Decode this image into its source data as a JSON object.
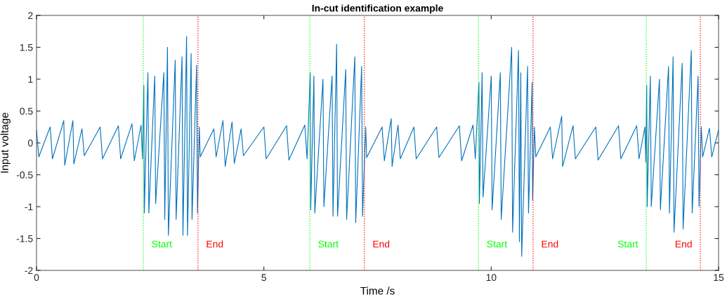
{
  "chart_data": {
    "type": "line",
    "title": "In-cut identification example",
    "xlabel": "Time /s",
    "ylabel": "Input voltage",
    "xlim": [
      0,
      15
    ],
    "xticks": [
      0,
      5,
      10,
      15
    ],
    "ylim": [
      -2,
      2
    ],
    "yticks": [
      -2,
      -1.5,
      -1,
      -0.5,
      0,
      0.5,
      1,
      1.5,
      2
    ],
    "grid": false,
    "legend": false,
    "marker": "none",
    "line_style": "solid",
    "series": [
      {
        "color": "#0072bd",
        "x": [
          0.0,
          0.05,
          0.3,
          0.35,
          0.6,
          0.62,
          0.8,
          0.82,
          1.0,
          1.05,
          1.4,
          1.45,
          1.8,
          1.85,
          2.1,
          2.15,
          2.3,
          2.33,
          2.36,
          2.37,
          2.45,
          2.47,
          2.6,
          2.62,
          2.8,
          2.82,
          2.88,
          2.9,
          3.05,
          3.07,
          3.2,
          3.22,
          3.3,
          3.32,
          3.4,
          3.42,
          3.52,
          3.54,
          3.58,
          3.6,
          3.9,
          3.95,
          4.1,
          4.15,
          4.3,
          4.35,
          4.5,
          4.55,
          5.0,
          5.05,
          5.5,
          5.55,
          5.9,
          5.95,
          6.02,
          6.03,
          6.1,
          6.12,
          6.3,
          6.32,
          6.5,
          6.52,
          6.6,
          6.62,
          6.8,
          6.82,
          7.0,
          7.02,
          7.15,
          7.17,
          7.24,
          7.26,
          7.6,
          7.65,
          7.8,
          7.82,
          7.95,
          8.0,
          8.3,
          8.35,
          8.8,
          8.85,
          9.3,
          9.35,
          9.6,
          9.65,
          9.73,
          9.74,
          9.8,
          9.82,
          10.0,
          10.02,
          10.2,
          10.22,
          10.45,
          10.47,
          10.6,
          10.62,
          10.65,
          10.67,
          10.8,
          10.82,
          10.9,
          10.91,
          10.95,
          10.98,
          11.3,
          11.35,
          11.55,
          11.57,
          11.8,
          11.85,
          12.3,
          12.35,
          12.8,
          12.85,
          13.2,
          13.25,
          13.38,
          13.4,
          13.42,
          13.43,
          13.5,
          13.52,
          13.7,
          13.72,
          13.9,
          13.92,
          14.0,
          14.02,
          14.2,
          14.22,
          14.4,
          14.42,
          14.55,
          14.57,
          14.62,
          14.65,
          14.8,
          14.85,
          15.0
        ],
        "values": [
          0.2,
          -0.22,
          0.25,
          -0.25,
          0.35,
          -0.35,
          0.35,
          -0.33,
          0.22,
          -0.2,
          0.25,
          -0.25,
          0.27,
          -0.25,
          0.3,
          -0.28,
          0.28,
          -0.25,
          0.9,
          -1.1,
          1.1,
          -1.1,
          1.05,
          -0.95,
          1.1,
          -1.2,
          1.5,
          -1.45,
          1.3,
          -1.2,
          1.35,
          -1.45,
          1.67,
          -1.45,
          1.4,
          -1.2,
          1.22,
          -1.1,
          0.25,
          -0.22,
          0.22,
          -0.22,
          0.35,
          -0.37,
          0.33,
          -0.32,
          0.22,
          -0.2,
          0.25,
          -0.25,
          0.27,
          -0.27,
          0.28,
          -0.25,
          1.1,
          -1.05,
          1.05,
          -1.1,
          1.0,
          -1.0,
          1.05,
          -1.15,
          1.55,
          -1.15,
          1.15,
          -1.2,
          1.35,
          -1.25,
          1.2,
          -1.15,
          0.25,
          -0.23,
          0.25,
          -0.28,
          0.38,
          -0.37,
          0.28,
          -0.25,
          0.25,
          -0.25,
          0.25,
          -0.23,
          0.27,
          -0.28,
          0.28,
          -0.25,
          0.95,
          -0.95,
          1.1,
          -0.85,
          1.05,
          -1.05,
          1.1,
          -1.2,
          1.5,
          -1.4,
          1.45,
          -1.55,
          1.1,
          -1.78,
          1.2,
          -1.1,
          0.95,
          -0.9,
          0.25,
          -0.22,
          0.25,
          -0.25,
          0.42,
          -0.37,
          0.27,
          -0.25,
          0.25,
          -0.27,
          0.27,
          -0.25,
          0.27,
          -0.25,
          0.25,
          -0.3,
          0.9,
          -1.0,
          1.05,
          -1.0,
          1.0,
          -1.05,
          1.2,
          -1.1,
          1.35,
          -1.4,
          1.25,
          -1.35,
          1.45,
          -1.1,
          1.05,
          -1.0,
          0.25,
          -0.22,
          0.23,
          -0.22,
          0.2
        ]
      }
    ],
    "ref_lines": [
      {
        "axis": "x",
        "value": 2.35,
        "label": "Start",
        "color": "#00ff00",
        "line_style": "dotted"
      },
      {
        "axis": "x",
        "value": 3.55,
        "label": "End",
        "color": "#ff0000",
        "line_style": "dotted"
      },
      {
        "axis": "x",
        "value": 6.01,
        "label": "Start",
        "color": "#00ff00",
        "line_style": "dotted"
      },
      {
        "axis": "x",
        "value": 7.21,
        "label": "End",
        "color": "#ff0000",
        "line_style": "dotted"
      },
      {
        "axis": "x",
        "value": 9.72,
        "label": "Start",
        "color": "#00ff00",
        "line_style": "dotted"
      },
      {
        "axis": "x",
        "value": 10.92,
        "label": "End",
        "color": "#ff0000",
        "line_style": "dotted"
      },
      {
        "axis": "x",
        "value": 13.41,
        "label": "Start",
        "color": "#00ff00",
        "line_style": "dotted"
      },
      {
        "axis": "x",
        "value": 14.6,
        "label": "End",
        "color": "#ff0000",
        "line_style": "dotted"
      }
    ]
  }
}
